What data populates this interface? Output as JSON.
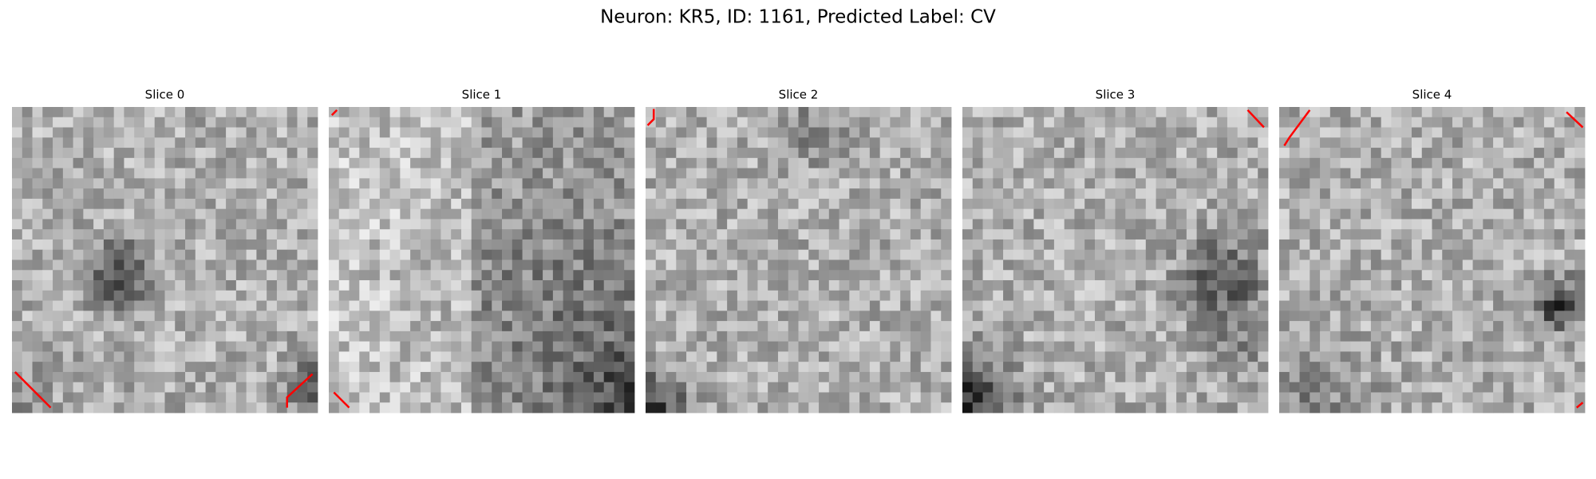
{
  "title": "Neuron: KR5, ID: 1161, Predicted Label: CV",
  "panels": [
    {
      "title": "Slice 0"
    },
    {
      "title": "Slice 1"
    },
    {
      "title": "Slice 2"
    },
    {
      "title": "Slice 3"
    },
    {
      "title": "Slice 4"
    }
  ]
}
